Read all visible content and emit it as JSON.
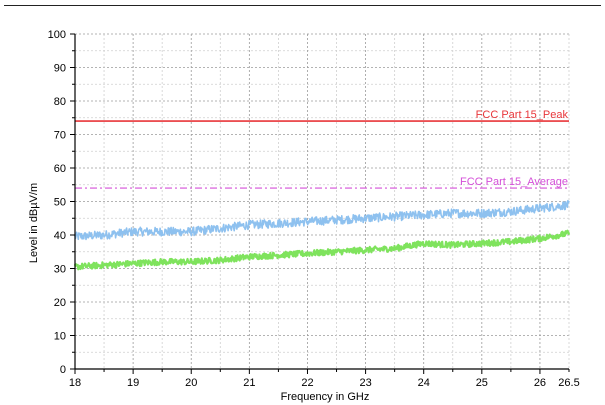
{
  "chart_data": {
    "type": "line",
    "xlabel": "Frequency in GHz",
    "ylabel": "Level in dBµV/m",
    "xlim": [
      18,
      26.5
    ],
    "ylim": [
      0,
      100
    ],
    "x_ticks": [
      "18",
      "19",
      "20",
      "21",
      "22",
      "23",
      "24",
      "25",
      "26",
      "26.5"
    ],
    "y_ticks": [
      "0",
      "10",
      "20",
      "30",
      "40",
      "50",
      "60",
      "70",
      "80",
      "90",
      "100"
    ],
    "grid": true,
    "limit_lines": [
      {
        "name": "FCC Part 15_Peak",
        "value": 74,
        "color": "#e8363a",
        "dashed": false
      },
      {
        "name": "FCC Part 15_Average",
        "value": 54,
        "color": "#d44fd8",
        "dashed": true
      }
    ],
    "series": [
      {
        "color": "#8ec1ef",
        "x": [
          18,
          18.5,
          19,
          19.5,
          20,
          20.5,
          21,
          21.5,
          22,
          22.5,
          23,
          23.5,
          24,
          24.5,
          25,
          25.5,
          26,
          26.5
        ],
        "values": [
          39.5,
          40,
          41,
          41,
          41,
          42,
          43,
          43.5,
          44,
          44.5,
          45,
          45.5,
          46,
          46.5,
          46.5,
          47,
          48,
          49
        ]
      },
      {
        "color": "#7fe35d",
        "x": [
          18,
          18.5,
          19,
          19.5,
          20,
          20.5,
          21,
          21.5,
          22,
          22.5,
          23,
          23.5,
          24,
          24.5,
          25,
          25.5,
          26,
          26.5
        ],
        "values": [
          30.5,
          31,
          31.5,
          32,
          32,
          32.5,
          33.5,
          34,
          34.5,
          35,
          35.5,
          36,
          37.5,
          37,
          37.5,
          38,
          39,
          40.5
        ]
      }
    ]
  }
}
